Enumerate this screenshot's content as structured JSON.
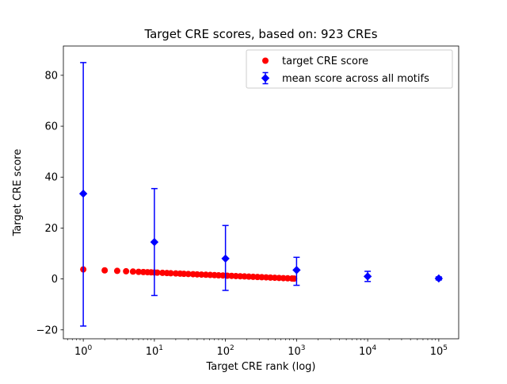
{
  "figure": {
    "background": "#ffffff"
  },
  "chart_data": {
    "type": "scatter",
    "title": "Target CRE scores, based on: 923 CREs",
    "xlabel": "Target CRE rank (log)",
    "ylabel": "Target CRE score",
    "x_scale": "log",
    "xlim_log10": [
      -0.28,
      5.28
    ],
    "ylim": [
      -23.5,
      91.5
    ],
    "grid": false,
    "legend_position": "upper right",
    "x_tick_exponents": [
      0,
      1,
      2,
      3,
      4,
      5
    ],
    "y_ticks": [
      -20,
      0,
      20,
      40,
      60,
      80
    ],
    "y_tick_labels": [
      "−20",
      "0",
      "20",
      "40",
      "60",
      "80"
    ],
    "series": [
      {
        "name": "target CRE score",
        "marker": "circle",
        "color": "#ff0000",
        "x": [
          1,
          2,
          3,
          4,
          5,
          6,
          7,
          8,
          9,
          10,
          11,
          13,
          15,
          17,
          20,
          23,
          26,
          30,
          35,
          40,
          46,
          53,
          61,
          70,
          80,
          92,
          106,
          122,
          140,
          161,
          185,
          213,
          245,
          282,
          324,
          373,
          429,
          493,
          567,
          652,
          750,
          862,
          923
        ],
        "y": [
          3.75,
          3.38,
          3.17,
          3.02,
          2.9,
          2.8,
          2.72,
          2.65,
          2.59,
          2.53,
          2.48,
          2.39,
          2.32,
          2.25,
          2.16,
          2.09,
          2.02,
          1.95,
          1.87,
          1.8,
          1.72,
          1.65,
          1.57,
          1.5,
          1.43,
          1.36,
          1.28,
          1.21,
          1.13,
          1.06,
          0.99,
          0.91,
          0.84,
          0.77,
          0.69,
          0.62,
          0.54,
          0.47,
          0.39,
          0.32,
          0.25,
          0.17,
          0.14
        ]
      },
      {
        "name": "mean score across all motifs",
        "marker": "diamond",
        "color": "#0000ff",
        "error_bars": true,
        "x": [
          1,
          10,
          100,
          1000,
          10000,
          100000
        ],
        "y": [
          33.5,
          14.5,
          8.0,
          3.5,
          1.0,
          0.2
        ],
        "yerr_low": [
          52.0,
          21.0,
          12.5,
          6.0,
          2.0,
          0.6
        ],
        "yerr_high": [
          51.5,
          21.0,
          13.0,
          5.0,
          2.0,
          0.6
        ]
      }
    ],
    "legend": {
      "items": [
        {
          "label": "target CRE score",
          "marker": "circle",
          "color": "#ff0000"
        },
        {
          "label": "mean score across all motifs",
          "marker": "diamond",
          "color": "#0000ff"
        }
      ]
    }
  }
}
